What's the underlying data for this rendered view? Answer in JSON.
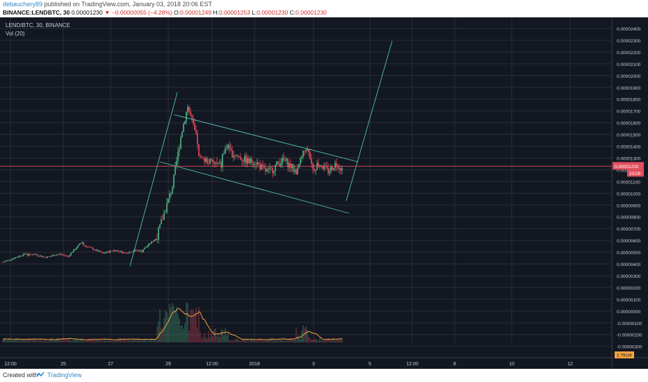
{
  "header": {
    "author": "debauchery89",
    "published": "published on TradingView.com, January 03, 2018 20:06 EST",
    "symbol": "BINANCE:LENDBTC, 30",
    "last": "0.00001230",
    "change": "−0.00000055 (−4.28%)",
    "o_label": "O:",
    "o_value": "0.00001249",
    "h_label": "H:",
    "h_value": "0.00001253",
    "l_label": "L:",
    "l_value": "0.00001230",
    "c_label": "C:",
    "c_value": "0.00001230"
  },
  "legend": {
    "pair": "LEND/BTC, 30, BINANCE",
    "volume": "Vol (20)"
  },
  "price_axis": {
    "labels": [
      "0.00002400",
      "0.00002300",
      "0.00002200",
      "0.00002100",
      "0.00002000",
      "0.00001900",
      "0.00001800",
      "0.00001700",
      "0.00001600",
      "0.00001500",
      "0.00001400",
      "0.00001300",
      "0.00001200",
      "0.00001100",
      "0.00001000",
      "0.00000900",
      "0.00000800",
      "0.00000700",
      "0.00000600",
      "0.00000500",
      "0.00000400",
      "0.00000300",
      "0.00000200",
      "0.00000100",
      "0.00000000",
      "-0.00000100",
      "-0.00000200",
      "-0.00000300"
    ],
    "current_price": "0.00001230",
    "countdown": "23:09",
    "volume_badge": "2.791M"
  },
  "time_axis": {
    "labels": [
      "12:00",
      "25",
      "27",
      "29",
      "12:00",
      "2018",
      "3",
      "5",
      "12:00",
      "8",
      "10",
      "12"
    ]
  },
  "colors": {
    "background": "#131722",
    "grid": "#2a2e39",
    "up": "#53b987",
    "down": "#eb4d5c",
    "channel": "#4ec3b1",
    "price_line": "#e0505e",
    "volume_ma": "#f7a440",
    "axis_text": "#c8ccd4"
  },
  "footer": {
    "created_with": "Created with",
    "brand": "TradingView",
    "logo_icon": "tradingview-logo-icon"
  }
}
